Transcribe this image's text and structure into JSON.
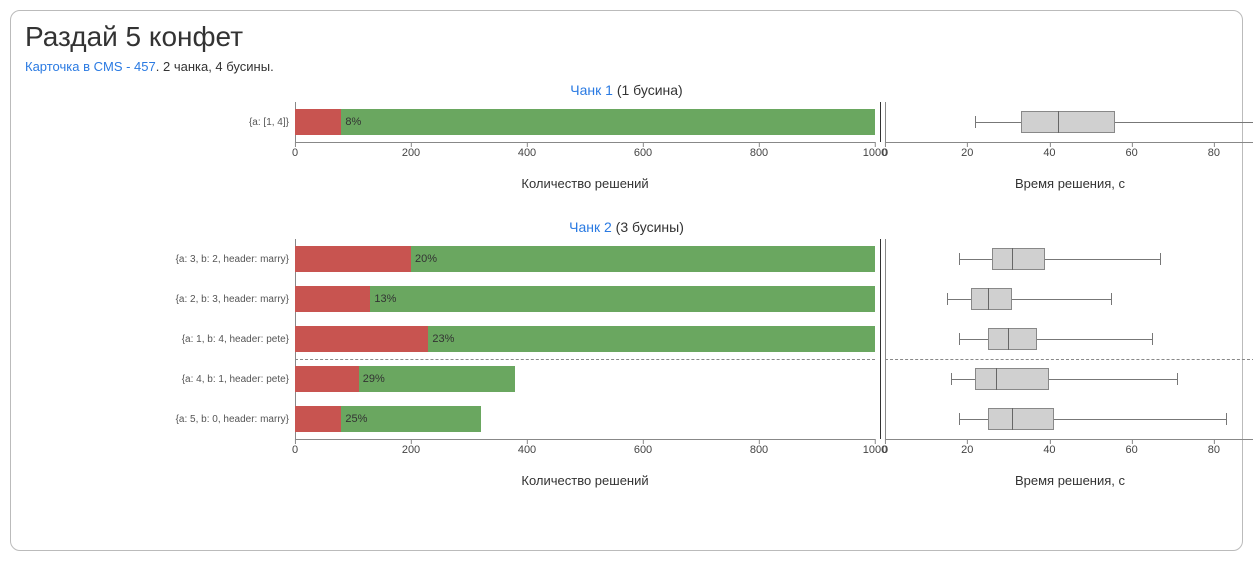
{
  "title": "Раздай 5 конфет",
  "subtitle_link_text": "Карточка в CMS - 457",
  "subtitle_rest": ". 2 чанка, 4 бусины.",
  "colors": {
    "red": "#c85450",
    "green": "#6aa760",
    "box_fill": "#d0d0d0",
    "box_border": "#888888",
    "link": "#2a7ae2"
  },
  "bar_axis": {
    "min": 0,
    "max": 1000,
    "ticks": [
      0,
      200,
      400,
      600,
      800,
      1000
    ],
    "label": "Количество решений"
  },
  "box_axis": {
    "min": 0,
    "max": 90,
    "ticks": [
      0,
      20,
      40,
      60,
      80
    ],
    "label": "Время решения, с"
  },
  "chunks": [
    {
      "title_link": "Чанк 1",
      "title_rest": " (1 бусина)",
      "dashed_after_row": 0,
      "rows": [
        {
          "label": "{a: [1, 4]}",
          "red": 80,
          "green": 920,
          "total": 1000,
          "pct": "8%",
          "box": {
            "min": 22,
            "q1": 33,
            "median": 42,
            "q3": 56,
            "max": 90
          }
        }
      ]
    },
    {
      "title_link": "Чанк 2",
      "title_rest": " (3 бусины)",
      "dashed_after_row": 2,
      "rows": [
        {
          "label": "{a: 3, b: 2, header: marry}",
          "red": 200,
          "green": 800,
          "total": 1000,
          "pct": "20%",
          "box": {
            "min": 18,
            "q1": 26,
            "median": 31,
            "q3": 39,
            "max": 67
          }
        },
        {
          "label": "{a: 2, b: 3, header: marry}",
          "red": 130,
          "green": 870,
          "total": 1000,
          "pct": "13%",
          "box": {
            "min": 15,
            "q1": 21,
            "median": 25,
            "q3": 31,
            "max": 55
          }
        },
        {
          "label": "{a: 1, b: 4, header: pete}",
          "red": 230,
          "green": 770,
          "total": 1000,
          "pct": "23%",
          "box": {
            "min": 18,
            "q1": 25,
            "median": 30,
            "q3": 37,
            "max": 65
          }
        },
        {
          "label": "{a: 4, b: 1, header: pete}",
          "red": 110,
          "green": 270,
          "total": 380,
          "pct": "29%",
          "box": {
            "min": 16,
            "q1": 22,
            "median": 27,
            "q3": 40,
            "max": 71
          }
        },
        {
          "label": "{a: 5, b: 0, header: marry}",
          "red": 80,
          "green": 240,
          "total": 320,
          "pct": "25%",
          "box": {
            "min": 18,
            "q1": 25,
            "median": 31,
            "q3": 41,
            "max": 83
          }
        }
      ]
    }
  ]
}
